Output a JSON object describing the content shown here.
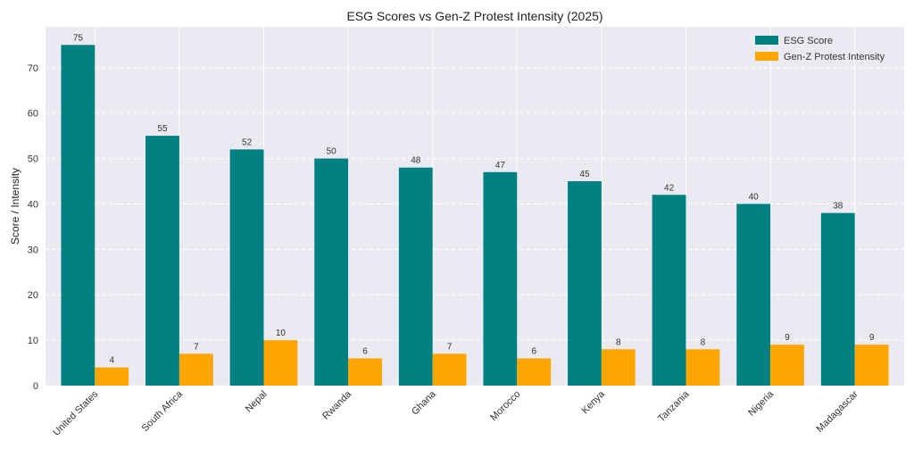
{
  "chart_data": {
    "type": "bar",
    "title": "ESG Scores vs Gen-Z Protest Intensity (2025)",
    "xlabel": "",
    "ylabel": "Score / Intensity",
    "ylim": [
      0,
      79
    ],
    "yticks": [
      0,
      10,
      20,
      30,
      40,
      50,
      60,
      70
    ],
    "grid": true,
    "legend_position": "top-right",
    "categories": [
      "United States",
      "South Africa",
      "Nepal",
      "Rwanda",
      "Ghana",
      "Morocco",
      "Kenya",
      "Tanzania",
      "Nigeria",
      "Madagascar"
    ],
    "series": [
      {
        "name": "ESG Score",
        "color": "#008080",
        "values": [
          75,
          55,
          52,
          50,
          48,
          47,
          45,
          42,
          40,
          38
        ]
      },
      {
        "name": "Gen-Z Protest Intensity",
        "color": "#FFA500",
        "values": [
          4,
          7,
          10,
          6,
          7,
          6,
          8,
          8,
          9,
          9
        ]
      }
    ],
    "plot_background": "#EAEAF2"
  }
}
